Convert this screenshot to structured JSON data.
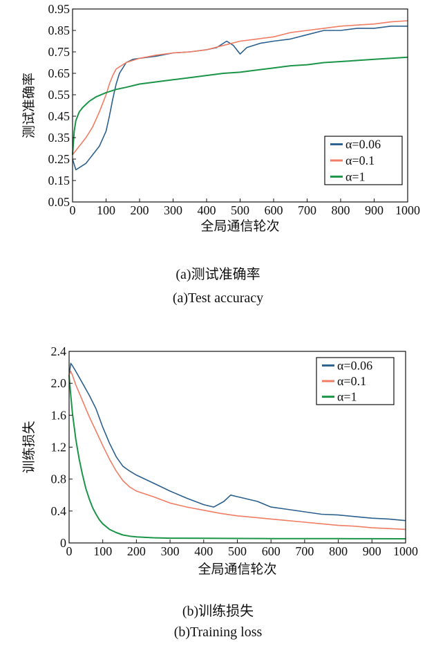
{
  "chart_data": [
    {
      "type": "line",
      "title": "",
      "xlabel": "全局通信轮次",
      "ylabel": "测试准确率",
      "xlim": [
        0,
        1000
      ],
      "ylim": [
        0.05,
        0.95
      ],
      "xticks": [
        0,
        100,
        200,
        300,
        400,
        500,
        600,
        700,
        800,
        900,
        1000
      ],
      "yticks": [
        0.05,
        0.15,
        0.25,
        0.35,
        0.45,
        0.55,
        0.65,
        0.75,
        0.85,
        0.95
      ],
      "ytick_labels": [
        "0.05",
        "0.15",
        "0.25",
        "0.35",
        "0.45",
        "0.55",
        "0.65",
        "0.75",
        "0.85",
        "0.95"
      ],
      "grid": false,
      "legend_position": "lower-right",
      "series": [
        {
          "name": "α=0.06",
          "color": "#2b5f8d",
          "x": [
            0,
            10,
            20,
            40,
            60,
            80,
            100,
            110,
            120,
            130,
            140,
            160,
            180,
            200,
            250,
            300,
            350,
            400,
            430,
            460,
            480,
            500,
            520,
            560,
            600,
            650,
            700,
            750,
            800,
            850,
            900,
            950,
            1000
          ],
          "y": [
            0.25,
            0.2,
            0.21,
            0.23,
            0.27,
            0.31,
            0.38,
            0.45,
            0.53,
            0.6,
            0.65,
            0.7,
            0.715,
            0.72,
            0.73,
            0.745,
            0.75,
            0.76,
            0.77,
            0.8,
            0.78,
            0.74,
            0.77,
            0.79,
            0.8,
            0.81,
            0.83,
            0.85,
            0.85,
            0.86,
            0.86,
            0.87,
            0.87
          ]
        },
        {
          "name": "α=0.1",
          "color": "#f07c63",
          "x": [
            0,
            10,
            20,
            40,
            60,
            80,
            100,
            110,
            120,
            130,
            140,
            160,
            180,
            200,
            250,
            300,
            350,
            400,
            450,
            500,
            550,
            600,
            650,
            700,
            750,
            800,
            850,
            900,
            950,
            1000
          ],
          "y": [
            0.27,
            0.29,
            0.31,
            0.35,
            0.4,
            0.47,
            0.55,
            0.6,
            0.64,
            0.67,
            0.68,
            0.7,
            0.71,
            0.72,
            0.735,
            0.745,
            0.75,
            0.76,
            0.78,
            0.8,
            0.81,
            0.82,
            0.84,
            0.85,
            0.86,
            0.87,
            0.875,
            0.88,
            0.89,
            0.895
          ]
        },
        {
          "name": "α=1",
          "color": "#1a9447",
          "x": [
            0,
            5,
            10,
            20,
            30,
            50,
            70,
            100,
            130,
            160,
            200,
            250,
            300,
            350,
            400,
            450,
            500,
            550,
            600,
            650,
            700,
            750,
            800,
            850,
            900,
            950,
            1000
          ],
          "y": [
            0.27,
            0.38,
            0.43,
            0.47,
            0.49,
            0.52,
            0.54,
            0.56,
            0.575,
            0.585,
            0.6,
            0.61,
            0.62,
            0.63,
            0.64,
            0.65,
            0.655,
            0.665,
            0.675,
            0.685,
            0.69,
            0.7,
            0.705,
            0.71,
            0.715,
            0.72,
            0.725
          ]
        }
      ]
    },
    {
      "type": "line",
      "title": "",
      "xlabel": "全局通信轮次",
      "ylabel": "训练损失",
      "xlim": [
        0,
        1000
      ],
      "ylim": [
        0,
        2.4
      ],
      "xticks": [
        0,
        100,
        200,
        300,
        400,
        500,
        600,
        700,
        800,
        900,
        1000
      ],
      "yticks": [
        0,
        0.4,
        0.8,
        1.2,
        1.6,
        2.0,
        2.4
      ],
      "ytick_labels": [
        "0",
        "0.4",
        "0.8",
        "1.2",
        "1.6",
        "2.0",
        "2.4"
      ],
      "grid": false,
      "legend_position": "top-right",
      "series": [
        {
          "name": "α=0.06",
          "color": "#2b5f8d",
          "x": [
            0,
            5,
            10,
            20,
            40,
            60,
            80,
            100,
            120,
            140,
            160,
            180,
            200,
            250,
            300,
            350,
            400,
            430,
            460,
            480,
            500,
            520,
            560,
            600,
            650,
            700,
            750,
            800,
            850,
            900,
            950,
            1000
          ],
          "y": [
            2.1,
            2.25,
            2.22,
            2.15,
            2.0,
            1.85,
            1.68,
            1.45,
            1.25,
            1.08,
            0.96,
            0.9,
            0.85,
            0.75,
            0.65,
            0.56,
            0.48,
            0.45,
            0.52,
            0.6,
            0.58,
            0.56,
            0.52,
            0.45,
            0.42,
            0.39,
            0.36,
            0.35,
            0.33,
            0.31,
            0.3,
            0.28
          ]
        },
        {
          "name": "α=0.1",
          "color": "#f07c63",
          "x": [
            0,
            5,
            10,
            20,
            40,
            60,
            80,
            100,
            120,
            140,
            160,
            180,
            200,
            250,
            300,
            350,
            400,
            450,
            500,
            550,
            600,
            650,
            700,
            750,
            800,
            850,
            900,
            950,
            1000
          ],
          "y": [
            2.1,
            2.15,
            2.1,
            1.98,
            1.78,
            1.58,
            1.4,
            1.22,
            1.05,
            0.9,
            0.78,
            0.7,
            0.65,
            0.58,
            0.5,
            0.45,
            0.41,
            0.37,
            0.34,
            0.32,
            0.3,
            0.28,
            0.26,
            0.24,
            0.22,
            0.21,
            0.19,
            0.18,
            0.17
          ]
        },
        {
          "name": "α=1",
          "color": "#1a9447",
          "x": [
            0,
            5,
            10,
            20,
            30,
            40,
            50,
            60,
            70,
            80,
            90,
            100,
            120,
            140,
            160,
            180,
            200,
            250,
            300,
            400,
            500,
            600,
            700,
            800,
            900,
            1000
          ],
          "y": [
            2.1,
            1.85,
            1.62,
            1.3,
            1.05,
            0.85,
            0.68,
            0.55,
            0.44,
            0.36,
            0.29,
            0.24,
            0.17,
            0.13,
            0.1,
            0.085,
            0.075,
            0.065,
            0.06,
            0.058,
            0.056,
            0.055,
            0.055,
            0.054,
            0.053,
            0.052
          ]
        }
      ]
    }
  ],
  "captions": {
    "a_cn": "(a)测试准确率",
    "a_en": "(a)Test accuracy",
    "b_cn": "(b)训练损失",
    "b_en": "(b)Training loss"
  }
}
